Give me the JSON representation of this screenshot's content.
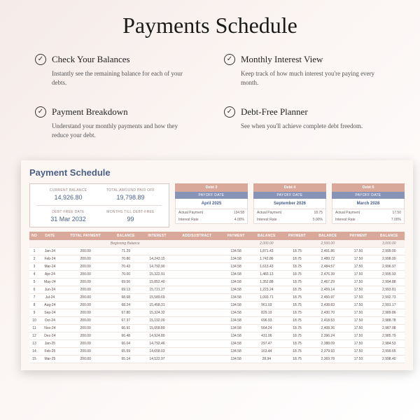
{
  "title": "Payments Schedule",
  "features": [
    {
      "title": "Check Your Balances",
      "desc": "Instantly see the remaining balance for each of your debts."
    },
    {
      "title": "Monthly Interest View",
      "desc": "Keep track of how much interest you're paying every month."
    },
    {
      "title": "Payment Breakdown",
      "desc": "Understand your monthly payments and how they reduce your debt."
    },
    {
      "title": "Debt-Free Planner",
      "desc": "See when you'll achieve complete debt freedom."
    }
  ],
  "panel": {
    "title": "Payment Schedule",
    "summary": {
      "current_balance_label": "CURRENT BALANCE",
      "current_balance": "14,926.80",
      "paid_off_label": "TOTAL AMOUND PAID OFF",
      "paid_off": "19,798.89",
      "debt_free_label": "DEBT FREE DATE",
      "debt_free": "31 Mar 2032",
      "months_label": "MONTHS TILL DEBT-FREE",
      "months": "99"
    },
    "debts": [
      {
        "name": "Debt 3",
        "payoff_label": "PAYOFF DATE",
        "payoff": "April 2025",
        "rows": [
          [
            "Actual Payment",
            "134.58"
          ],
          [
            "Interest Rate",
            "4.00%"
          ]
        ]
      },
      {
        "name": "Debt 4",
        "payoff_label": "PAYOFF DATE",
        "payoff": "September 2026",
        "rows": [
          [
            "Actual Payment",
            "18.75"
          ],
          [
            "Interest Rate",
            "5.00%"
          ]
        ]
      },
      {
        "name": "Debt 5",
        "payoff_label": "PAYOFF DATE",
        "payoff": "March 2028",
        "rows": [
          [
            "Actual Payment",
            "17.50"
          ],
          [
            "Interest Rate",
            "7.00%"
          ]
        ]
      }
    ],
    "columns_main": [
      "NO",
      "DATE",
      "TOTAL PAYMENT",
      "BALANCE",
      "INTEREST",
      "ADD/SUBTRACT"
    ],
    "columns_pair": [
      "PAYMENT",
      "BALANCE"
    ],
    "beginning_label": "Beginning Balance",
    "beginning_right": [
      [
        "",
        "2,000.00"
      ],
      [
        "",
        "2,500.00"
      ],
      [
        "",
        "3,000.00"
      ]
    ],
    "rows": [
      {
        "no": "1",
        "date": "Jan-24",
        "total": "200.00",
        "bal": "71.29",
        "int": "",
        "adj": "",
        "d3": [
          "134.58",
          "1,871.43"
        ],
        "d4": [
          "18.75",
          "2,491.86"
        ],
        "d5": [
          "17.50",
          "2,999.00"
        ]
      },
      {
        "no": "2",
        "date": "Feb-24",
        "total": "200.00",
        "bal": "70.86",
        "int": "14,243.15",
        "adj": "",
        "d3": [
          "134.58",
          "1,742.86"
        ],
        "d4": [
          "18.75",
          "2,489.72"
        ],
        "d5": [
          "17.50",
          "2,998.00"
        ]
      },
      {
        "no": "3",
        "date": "Mar-24",
        "total": "200.00",
        "bal": "70.43",
        "int": "14,792.90",
        "adj": "",
        "d3": [
          "134.58",
          "1,613.43"
        ],
        "d4": [
          "18.75",
          "2,484.57"
        ],
        "d5": [
          "17.50",
          "2,996.97"
        ]
      },
      {
        "no": "4",
        "date": "Apr-24",
        "total": "200.00",
        "bal": "70.00",
        "int": "15,322.91",
        "adj": "",
        "d3": [
          "134.58",
          "1,483.13"
        ],
        "d4": [
          "18.75",
          "2,476.39"
        ],
        "d5": [
          "17.50",
          "2,995.93"
        ]
      },
      {
        "no": "5",
        "date": "May-24",
        "total": "200.00",
        "bal": "69.56",
        "int": "15,852.40",
        "adj": "",
        "d3": [
          "134.58",
          "1,352.88"
        ],
        "d4": [
          "18.75",
          "2,467.29"
        ],
        "d5": [
          "17.50",
          "2,994.88"
        ]
      },
      {
        "no": "6",
        "date": "Jun-24",
        "total": "200.00",
        "bal": "69.13",
        "int": "15,721.27",
        "adj": "",
        "d3": [
          "134.58",
          "1,223.24"
        ],
        "d4": [
          "18.75",
          "2,459.14"
        ],
        "d5": [
          "17.50",
          "2,993.81"
        ]
      },
      {
        "no": "7",
        "date": "Jul-24",
        "total": "200.00",
        "bal": "68.68",
        "int": "15,589.69",
        "adj": "",
        "d3": [
          "134.58",
          "1,093.71"
        ],
        "d4": [
          "18.75",
          "2,450.97"
        ],
        "d5": [
          "17.50",
          "2,992.73"
        ]
      },
      {
        "no": "8",
        "date": "Aug-24",
        "total": "200.00",
        "bal": "68.24",
        "int": "15,458.31",
        "adj": "",
        "d3": [
          "134.58",
          "961.03"
        ],
        "d4": [
          "18.75",
          "2,438.83"
        ],
        "d5": [
          "17.50",
          "2,991.17"
        ]
      },
      {
        "no": "9",
        "date": "Sep-24",
        "total": "200.00",
        "bal": "67.80",
        "int": "15,324.32",
        "adj": "",
        "d3": [
          "134.58",
          "829.19"
        ],
        "d4": [
          "18.75",
          "2,430.70"
        ],
        "d5": [
          "17.50",
          "2,989.86"
        ]
      },
      {
        "no": "10",
        "date": "Oct-24",
        "total": "200.00",
        "bal": "67.37",
        "int": "15,192.00",
        "adj": "",
        "d3": [
          "134.58",
          "696.93"
        ],
        "d4": [
          "18.75",
          "2,418.53"
        ],
        "d5": [
          "17.50",
          "2,988.78"
        ]
      },
      {
        "no": "11",
        "date": "Nov-24",
        "total": "200.00",
        "bal": "66.91",
        "int": "15,058.89",
        "adj": "",
        "d3": [
          "134.58",
          "564.24"
        ],
        "d4": [
          "18.75",
          "2,408.36"
        ],
        "d5": [
          "17.50",
          "2,987.08"
        ]
      },
      {
        "no": "12",
        "date": "Dec-24",
        "total": "200.00",
        "bal": "66.48",
        "int": "14,924.80",
        "adj": "",
        "d3": [
          "134.58",
          "431.06"
        ],
        "d4": [
          "18.75",
          "2,396.24"
        ],
        "d5": [
          "17.50",
          "2,985.79"
        ]
      },
      {
        "no": "13",
        "date": "Jan-25",
        "total": "200.00",
        "bal": "66.04",
        "int": "14,792.46",
        "adj": "",
        "d3": [
          "134.58",
          "297.47"
        ],
        "d4": [
          "18.75",
          "2,388.09"
        ],
        "d5": [
          "17.50",
          "2,984.53"
        ]
      },
      {
        "no": "14",
        "date": "Feb-25",
        "total": "200.00",
        "bal": "65.59",
        "int": "14,658.03",
        "adj": "",
        "d3": [
          "134.58",
          "163.44"
        ],
        "d4": [
          "18.75",
          "2,379.93"
        ],
        "d5": [
          "17.50",
          "2,999.65"
        ]
      },
      {
        "no": "15",
        "date": "Mar-25",
        "total": "200.00",
        "bal": "65.14",
        "int": "14,522.97",
        "adj": "",
        "d3": [
          "134.58",
          "28.94"
        ],
        "d4": [
          "18.75",
          "2,369.78"
        ],
        "d5": [
          "17.50",
          "2,998.40"
        ]
      }
    ]
  },
  "colors": {
    "header_bar": "#d8a89a",
    "sub_bar": "#8893b8",
    "accent_text": "#4a5f87",
    "panel_bg": "#fdf7f4"
  }
}
